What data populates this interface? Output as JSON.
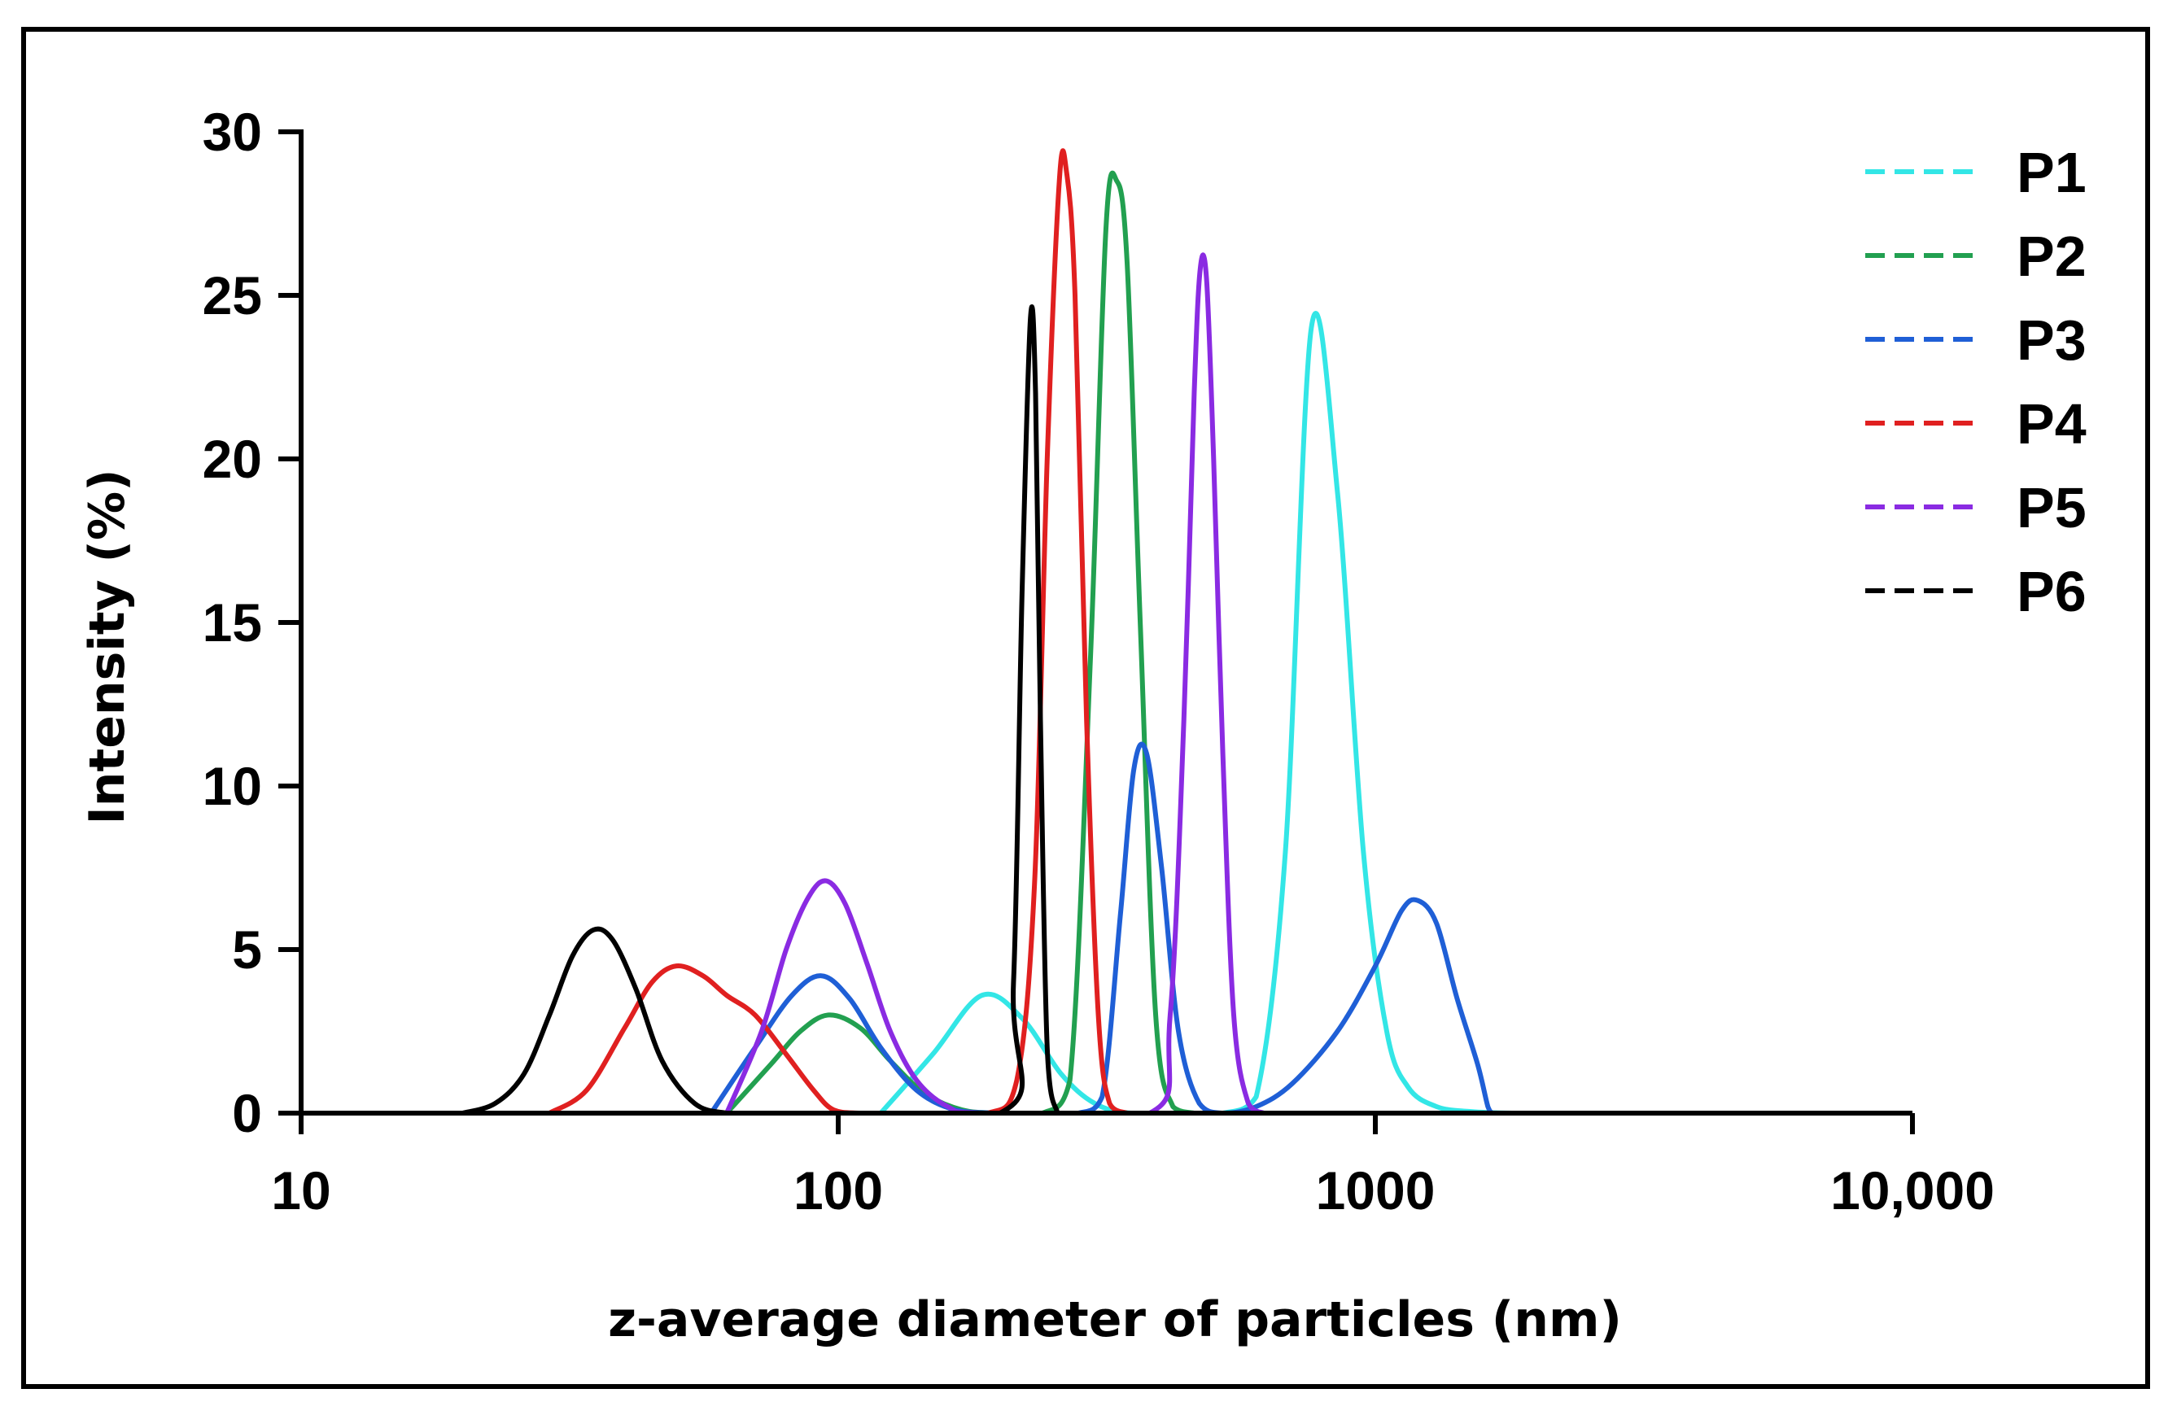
{
  "chart_data": {
    "type": "line",
    "xscale": "log",
    "xlim": [
      10,
      10000
    ],
    "ylim": [
      0,
      30
    ],
    "xlabel": "z-average diameter of particles (nm)",
    "ylabel": "Intensity (%)",
    "x_ticks": [
      {
        "value": 10,
        "label": "10"
      },
      {
        "value": 100,
        "label": "100"
      },
      {
        "value": 1000,
        "label": "1000"
      },
      {
        "value": 10000,
        "label": "10,000"
      }
    ],
    "y_ticks": [
      {
        "value": 0,
        "label": "0"
      },
      {
        "value": 5,
        "label": "5"
      },
      {
        "value": 10,
        "label": "10"
      },
      {
        "value": 15,
        "label": "15"
      },
      {
        "value": 20,
        "label": "20"
      },
      {
        "value": 25,
        "label": "25"
      },
      {
        "value": 30,
        "label": "30"
      }
    ],
    "legend_position": "top-right",
    "series": [
      {
        "name": "P1",
        "color": "#33e6e6",
        "x": [
          120,
          150,
          185,
          220,
          260,
          300,
          350,
          450,
          520,
          600,
          680,
          760,
          850,
          950,
          1050,
          1150,
          1300,
          1500,
          1800,
          2500,
          3200
        ],
        "y": [
          0,
          1.8,
          3.6,
          2.9,
          1.2,
          0.3,
          0,
          0,
          0,
          0.5,
          8,
          24,
          19,
          8,
          2.5,
          0.8,
          0.2,
          0.05,
          0,
          0,
          0
        ]
      },
      {
        "name": "P2",
        "color": "#22a050",
        "x": [
          62,
          75,
          85,
          96,
          110,
          125,
          145,
          170,
          200,
          240,
          270,
          295,
          315,
          330,
          345,
          365,
          390,
          420,
          460
        ],
        "y": [
          0,
          1.5,
          2.5,
          3.0,
          2.6,
          1.6,
          0.6,
          0.1,
          0,
          0,
          1.0,
          14,
          27,
          28.5,
          26,
          15,
          3,
          0.2,
          0
        ]
      },
      {
        "name": "P3",
        "color": "#1f5fd6",
        "x": [
          58,
          70,
          82,
          93,
          105,
          120,
          140,
          165,
          200,
          240,
          280,
          310,
          335,
          355,
          375,
          400,
          430,
          470,
          520,
          600,
          700,
          850,
          1000,
          1120,
          1200,
          1300,
          1420,
          1550,
          1620,
          1650
        ],
        "y": [
          0,
          2.0,
          3.6,
          4.2,
          3.5,
          2.0,
          0.7,
          0.1,
          0,
          0,
          0,
          0.5,
          6,
          10.5,
          11,
          7.5,
          2.5,
          0.3,
          0,
          0.2,
          0.9,
          2.5,
          4.5,
          6.2,
          6.5,
          5.8,
          3.5,
          1.5,
          0.2,
          0
        ]
      },
      {
        "name": "P4",
        "color": "#e02020",
        "x": [
          29,
          34,
          40,
          45,
          50,
          56,
          62,
          70,
          80,
          90,
          98,
          110,
          140,
          190,
          215,
          232,
          245,
          258,
          266,
          276,
          290,
          305,
          320,
          345
        ],
        "y": [
          0,
          0.7,
          2.6,
          4.0,
          4.5,
          4.2,
          3.6,
          3.0,
          1.8,
          0.7,
          0.1,
          0,
          0,
          0,
          1.0,
          7,
          20,
          28.5,
          28.8,
          25,
          12,
          3,
          0.3,
          0
        ]
      },
      {
        "name": "P5",
        "color": "#8a2be2",
        "x": [
          62,
          72,
          80,
          88,
          95,
          103,
          113,
          125,
          140,
          160,
          185,
          380,
          415,
          440,
          460,
          472,
          485,
          500,
          520,
          545,
          580,
          620
        ],
        "y": [
          0,
          2.5,
          5.0,
          6.6,
          7.1,
          6.4,
          4.6,
          2.5,
          1.0,
          0.2,
          0,
          0,
          3,
          12,
          22,
          25.8,
          25.5,
          20,
          11,
          3,
          0.3,
          0
        ]
      },
      {
        "name": "P6",
        "color": "#000000",
        "x": [
          20,
          23,
          26,
          29,
          32,
          35,
          38,
          42,
          47,
          54,
          62,
          70,
          200,
          212,
          220,
          228,
          233,
          238,
          245,
          256
        ],
        "y": [
          0,
          0.3,
          1.2,
          3.0,
          4.8,
          5.6,
          5.3,
          3.8,
          1.6,
          0.3,
          0,
          0,
          0,
          4,
          16,
          24.3,
          22,
          12,
          2,
          0
        ]
      }
    ]
  }
}
